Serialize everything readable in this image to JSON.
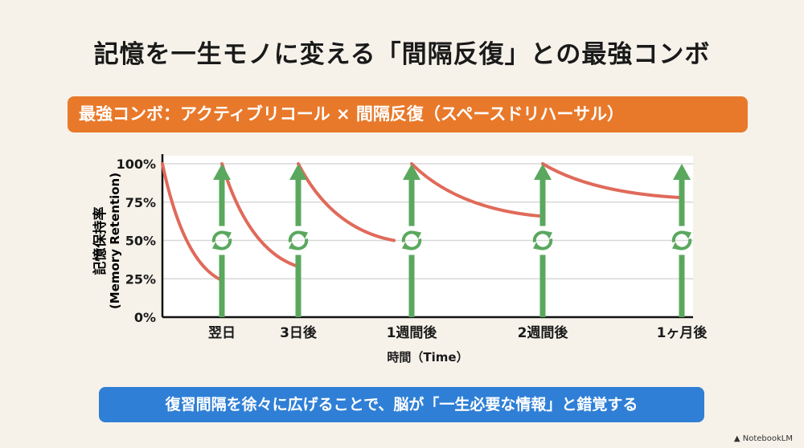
{
  "title": "記憶を一生モノに変える「間隔反復」との最強コンボ",
  "banner_top": "最強コンボ：アクティブリコール × 間隔反復（スペースドリハーサル）",
  "banner_bottom": "復習間隔を徐々に広げることで、脳が「一生必要な情報」と錯覚する",
  "watermark": "NotebookLM",
  "colors": {
    "background": "#f6f2ea",
    "orange": "#e8792b",
    "blue": "#2f7fd6",
    "curve": "#e06a5a",
    "arrow": "#5aa85e"
  },
  "chart_data": {
    "type": "line",
    "title": "",
    "xlabel": "時間（Time）",
    "ylabel": "記憶保持率",
    "ylabel_sub": "(Memory Retention)",
    "ylim": [
      0,
      100
    ],
    "yticks": [
      "0%",
      "25%",
      "50%",
      "75%",
      "100%"
    ],
    "grid": true,
    "categories": [
      "翌日",
      "3日後",
      "1週間後",
      "2週間後",
      "1ヶ月後"
    ],
    "review_marker": {
      "icon": "refresh-icon",
      "arrow": "up-arrow",
      "retention_after_review": 100
    },
    "segments": [
      {
        "start": "開始",
        "end": "翌日",
        "start_value": 100,
        "end_value": 24
      },
      {
        "start": "翌日",
        "end": "3日後",
        "start_value": 100,
        "end_value": 33
      },
      {
        "start": "3日後",
        "end": "1週間後",
        "start_value": 100,
        "end_value": 50
      },
      {
        "start": "1週間後",
        "end": "2週間後",
        "start_value": 100,
        "end_value": 66
      },
      {
        "start": "2週間後",
        "end": "1ヶ月後",
        "start_value": 100,
        "end_value": 78
      }
    ]
  }
}
